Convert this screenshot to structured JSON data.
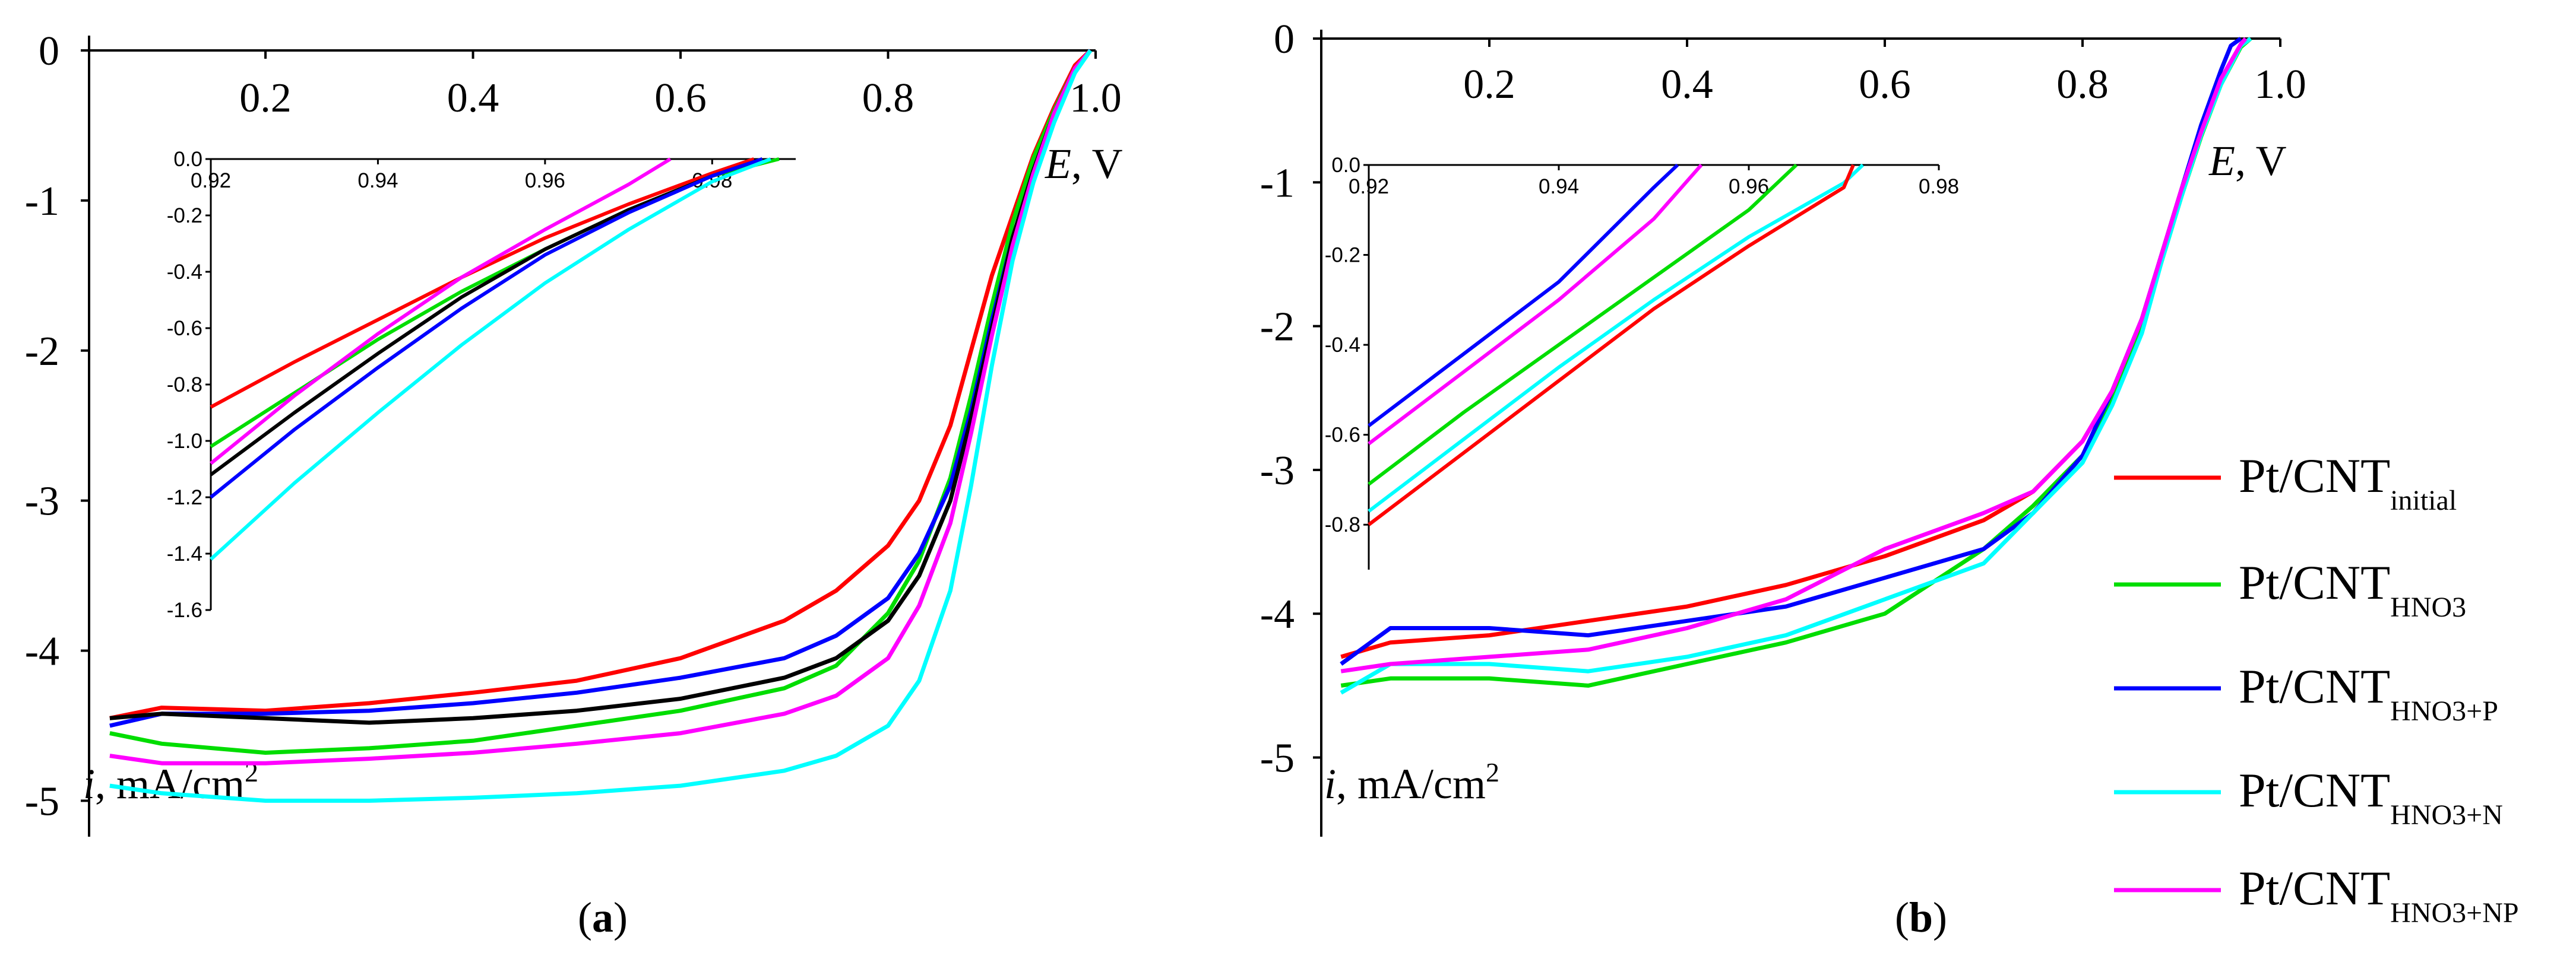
{
  "chart_data": [
    {
      "type": "line",
      "panel_label": "a",
      "xlabel_symbol": "E",
      "xlabel_unit": ", V",
      "ylabel_symbol": "i",
      "ylabel_unit": ", mA/cm",
      "ylabel_sup": "2",
      "xlim": [
        0.03,
        1.0
      ],
      "ylim": [
        -5.2,
        0
      ],
      "xticks": [
        0.2,
        0.4,
        0.6,
        0.8,
        1.0
      ],
      "xtick_labels": [
        "0.2",
        "0.4",
        "0.6",
        "0.8",
        "1.0"
      ],
      "yticks": [
        0,
        -1,
        -2,
        -3,
        -4,
        -5
      ],
      "ytick_labels": [
        "0",
        "-1",
        "-2",
        "-3",
        "-4",
        "-5"
      ],
      "series": [
        {
          "name": "red",
          "color": "#ff0000",
          "x": [
            0.05,
            0.1,
            0.2,
            0.3,
            0.4,
            0.5,
            0.6,
            0.7,
            0.75,
            0.8,
            0.83,
            0.86,
            0.88,
            0.9,
            0.92,
            0.94,
            0.96,
            0.98,
            0.995
          ],
          "y": [
            -4.45,
            -4.38,
            -4.4,
            -4.35,
            -4.28,
            -4.2,
            -4.05,
            -3.8,
            -3.6,
            -3.3,
            -3.0,
            -2.5,
            -2.0,
            -1.5,
            -1.1,
            -0.7,
            -0.38,
            -0.1,
            0
          ]
        },
        {
          "name": "green",
          "color": "#00dd00",
          "x": [
            0.05,
            0.1,
            0.2,
            0.3,
            0.4,
            0.5,
            0.6,
            0.7,
            0.75,
            0.8,
            0.83,
            0.86,
            0.88,
            0.9,
            0.92,
            0.94,
            0.96,
            0.98,
            0.995
          ],
          "y": [
            -4.55,
            -4.62,
            -4.68,
            -4.65,
            -4.6,
            -4.5,
            -4.4,
            -4.25,
            -4.1,
            -3.75,
            -3.4,
            -2.85,
            -2.3,
            -1.7,
            -1.15,
            -0.72,
            -0.4,
            -0.12,
            0
          ]
        },
        {
          "name": "blue",
          "color": "#0000ff",
          "x": [
            0.05,
            0.1,
            0.2,
            0.3,
            0.4,
            0.5,
            0.6,
            0.7,
            0.75,
            0.8,
            0.83,
            0.86,
            0.88,
            0.9,
            0.92,
            0.94,
            0.96,
            0.98,
            0.995
          ],
          "y": [
            -4.5,
            -4.42,
            -4.42,
            -4.4,
            -4.35,
            -4.28,
            -4.18,
            -4.05,
            -3.9,
            -3.65,
            -3.35,
            -2.9,
            -2.4,
            -1.8,
            -1.25,
            -0.8,
            -0.42,
            -0.12,
            0
          ]
        },
        {
          "name": "black",
          "color": "#000000",
          "x": [
            0.05,
            0.1,
            0.2,
            0.3,
            0.4,
            0.5,
            0.6,
            0.7,
            0.75,
            0.8,
            0.83,
            0.86,
            0.88,
            0.9,
            0.92,
            0.94,
            0.96,
            0.98,
            0.995
          ],
          "y": [
            -4.45,
            -4.42,
            -4.45,
            -4.48,
            -4.45,
            -4.4,
            -4.32,
            -4.18,
            -4.05,
            -3.8,
            -3.5,
            -3.0,
            -2.45,
            -1.85,
            -1.25,
            -0.8,
            -0.42,
            -0.12,
            0
          ]
        },
        {
          "name": "magenta",
          "color": "#ff00ff",
          "x": [
            0.05,
            0.1,
            0.2,
            0.3,
            0.4,
            0.5,
            0.6,
            0.7,
            0.75,
            0.8,
            0.83,
            0.86,
            0.88,
            0.9,
            0.92,
            0.94,
            0.96,
            0.98,
            0.995
          ],
          "y": [
            -4.7,
            -4.75,
            -4.75,
            -4.72,
            -4.68,
            -4.62,
            -4.55,
            -4.42,
            -4.3,
            -4.05,
            -3.7,
            -3.15,
            -2.55,
            -1.9,
            -1.3,
            -0.82,
            -0.42,
            -0.12,
            0
          ]
        },
        {
          "name": "cyan",
          "color": "#00ffff",
          "x": [
            0.05,
            0.1,
            0.2,
            0.3,
            0.4,
            0.5,
            0.6,
            0.7,
            0.75,
            0.8,
            0.83,
            0.86,
            0.88,
            0.9,
            0.92,
            0.94,
            0.96,
            0.98,
            0.995
          ],
          "y": [
            -4.9,
            -4.95,
            -5.0,
            -5.0,
            -4.98,
            -4.95,
            -4.9,
            -4.8,
            -4.7,
            -4.5,
            -4.2,
            -3.6,
            -2.9,
            -2.1,
            -1.4,
            -0.88,
            -0.48,
            -0.15,
            0
          ]
        }
      ],
      "inset": {
        "xlim": [
          0.92,
          0.99
        ],
        "ylim": [
          -1.6,
          0
        ],
        "xticks": [
          0.92,
          0.94,
          0.96,
          0.98
        ],
        "xtick_labels": [
          "0.92",
          "0.94",
          "0.96",
          "0.98"
        ],
        "yticks": [
          0,
          -0.2,
          -0.4,
          -0.6,
          -0.8,
          -1.0,
          -1.2,
          -1.4,
          -1.6
        ],
        "ytick_labels": [
          "0.0",
          "-0.2",
          "-0.4",
          "-0.6",
          "-0.8",
          "-1.0",
          "-1.2",
          "-1.4",
          "-1.6"
        ],
        "series": [
          {
            "name": "red",
            "color": "#ff0000",
            "x": [
              0.92,
              0.93,
              0.94,
              0.95,
              0.96,
              0.97,
              0.98,
              0.985
            ],
            "y": [
              -0.88,
              -0.72,
              -0.57,
              -0.42,
              -0.28,
              -0.16,
              -0.05,
              0
            ]
          },
          {
            "name": "green",
            "color": "#00dd00",
            "x": [
              0.92,
              0.93,
              0.94,
              0.95,
              0.96,
              0.97,
              0.98,
              0.988
            ],
            "y": [
              -1.02,
              -0.83,
              -0.64,
              -0.47,
              -0.32,
              -0.18,
              -0.06,
              0
            ]
          },
          {
            "name": "black",
            "color": "#000000",
            "x": [
              0.92,
              0.93,
              0.94,
              0.95,
              0.96,
              0.97,
              0.98,
              0.986
            ],
            "y": [
              -1.12,
              -0.9,
              -0.69,
              -0.49,
              -0.32,
              -0.18,
              -0.06,
              0
            ]
          },
          {
            "name": "blue",
            "color": "#0000ff",
            "x": [
              0.92,
              0.93,
              0.94,
              0.95,
              0.96,
              0.97,
              0.98,
              0.986
            ],
            "y": [
              -1.2,
              -0.96,
              -0.74,
              -0.53,
              -0.34,
              -0.19,
              -0.06,
              0
            ]
          },
          {
            "name": "magenta",
            "color": "#ff00ff",
            "x": [
              0.92,
              0.93,
              0.94,
              0.95,
              0.96,
              0.97,
              0.975
            ],
            "y": [
              -1.08,
              -0.84,
              -0.62,
              -0.42,
              -0.25,
              -0.09,
              0
            ]
          },
          {
            "name": "cyan",
            "color": "#00ffff",
            "x": [
              0.92,
              0.93,
              0.94,
              0.95,
              0.96,
              0.97,
              0.98,
              0.987
            ],
            "y": [
              -1.42,
              -1.15,
              -0.9,
              -0.66,
              -0.44,
              -0.25,
              -0.08,
              0
            ]
          }
        ]
      }
    },
    {
      "type": "line",
      "panel_label": "b",
      "xlabel_symbol": "E",
      "xlabel_unit": ", V",
      "ylabel_symbol": "i",
      "ylabel_unit": ", mA/cm",
      "ylabel_sup": "2",
      "xlim": [
        0.03,
        1.0
      ],
      "ylim": [
        -5.2,
        0
      ],
      "xticks": [
        0.2,
        0.4,
        0.6,
        0.8,
        1.0
      ],
      "xtick_labels": [
        "0.2",
        "0.4",
        "0.6",
        "0.8",
        "1.0"
      ],
      "yticks": [
        0,
        -1,
        -2,
        -3,
        -4,
        -5
      ],
      "ytick_labels": [
        "0",
        "-1",
        "-2",
        "-3",
        "-4",
        "-5"
      ],
      "series": [
        {
          "name": "Pt/CNT initial",
          "color": "#ff0000",
          "x": [
            0.05,
            0.1,
            0.2,
            0.3,
            0.4,
            0.5,
            0.6,
            0.7,
            0.75,
            0.8,
            0.83,
            0.86,
            0.88,
            0.9,
            0.92,
            0.94,
            0.96,
            0.97
          ],
          "y": [
            -4.3,
            -4.2,
            -4.15,
            -4.05,
            -3.95,
            -3.8,
            -3.6,
            -3.35,
            -3.15,
            -2.8,
            -2.45,
            -1.95,
            -1.5,
            -1.05,
            -0.65,
            -0.3,
            -0.05,
            0
          ]
        },
        {
          "name": "Pt/CNT HNO3",
          "color": "#00dd00",
          "x": [
            0.05,
            0.1,
            0.2,
            0.3,
            0.4,
            0.5,
            0.6,
            0.7,
            0.75,
            0.8,
            0.83,
            0.86,
            0.88,
            0.9,
            0.92,
            0.94,
            0.96,
            0.97
          ],
          "y": [
            -4.5,
            -4.45,
            -4.45,
            -4.5,
            -4.35,
            -4.2,
            -4.0,
            -3.55,
            -3.25,
            -2.9,
            -2.5,
            -2.0,
            -1.55,
            -1.1,
            -0.68,
            -0.32,
            -0.06,
            0
          ]
        },
        {
          "name": "Pt/CNT HNO3+P",
          "color": "#0000ff",
          "x": [
            0.05,
            0.1,
            0.2,
            0.3,
            0.4,
            0.5,
            0.6,
            0.7,
            0.75,
            0.8,
            0.83,
            0.86,
            0.88,
            0.9,
            0.92,
            0.94,
            0.95,
            0.96
          ],
          "y": [
            -4.35,
            -4.1,
            -4.1,
            -4.15,
            -4.05,
            -3.95,
            -3.75,
            -3.55,
            -3.3,
            -2.9,
            -2.45,
            -1.95,
            -1.5,
            -1.05,
            -0.6,
            -0.22,
            -0.05,
            0
          ]
        },
        {
          "name": "Pt/CNT HNO3+N",
          "color": "#00ffff",
          "x": [
            0.05,
            0.1,
            0.2,
            0.3,
            0.4,
            0.5,
            0.6,
            0.7,
            0.75,
            0.8,
            0.83,
            0.86,
            0.88,
            0.9,
            0.92,
            0.94,
            0.96,
            0.97
          ],
          "y": [
            -4.55,
            -4.35,
            -4.35,
            -4.4,
            -4.3,
            -4.15,
            -3.9,
            -3.65,
            -3.3,
            -2.95,
            -2.55,
            -2.05,
            -1.55,
            -1.1,
            -0.67,
            -0.32,
            -0.05,
            0
          ]
        },
        {
          "name": "Pt/CNT HNO3+NP",
          "color": "#ff00ff",
          "x": [
            0.05,
            0.1,
            0.2,
            0.3,
            0.4,
            0.5,
            0.6,
            0.7,
            0.75,
            0.8,
            0.83,
            0.86,
            0.88,
            0.9,
            0.92,
            0.94,
            0.96,
            0.965
          ],
          "y": [
            -4.4,
            -4.35,
            -4.3,
            -4.25,
            -4.1,
            -3.9,
            -3.55,
            -3.3,
            -3.15,
            -2.8,
            -2.45,
            -1.95,
            -1.5,
            -1.05,
            -0.65,
            -0.28,
            -0.04,
            0
          ]
        }
      ],
      "inset": {
        "xlim": [
          0.92,
          0.98
        ],
        "ylim": [
          -0.9,
          0
        ],
        "xticks": [
          0.92,
          0.94,
          0.96,
          0.98
        ],
        "xtick_labels": [
          "0.92",
          "0.94",
          "0.96",
          "0.98"
        ],
        "yticks": [
          0,
          -0.2,
          -0.4,
          -0.6,
          -0.8
        ],
        "ytick_labels": [
          "0.0",
          "-0.2",
          "-0.4",
          "-0.6",
          "-0.8"
        ],
        "series": [
          {
            "name": "blue",
            "color": "#0000ff",
            "x": [
              0.92,
              0.93,
              0.94,
              0.95,
              0.9525
            ],
            "y": [
              -0.58,
              -0.42,
              -0.26,
              -0.05,
              0
            ]
          },
          {
            "name": "magenta",
            "color": "#ff00ff",
            "x": [
              0.92,
              0.93,
              0.94,
              0.95,
              0.955
            ],
            "y": [
              -0.62,
              -0.46,
              -0.3,
              -0.12,
              0
            ]
          },
          {
            "name": "green",
            "color": "#00dd00",
            "x": [
              0.92,
              0.93,
              0.94,
              0.95,
              0.96,
              0.965
            ],
            "y": [
              -0.71,
              -0.55,
              -0.4,
              -0.25,
              -0.1,
              0
            ]
          },
          {
            "name": "cyan",
            "color": "#00ffff",
            "x": [
              0.92,
              0.93,
              0.94,
              0.95,
              0.96,
              0.97,
              0.972
            ],
            "y": [
              -0.77,
              -0.61,
              -0.45,
              -0.3,
              -0.16,
              -0.04,
              0
            ]
          },
          {
            "name": "red",
            "color": "#ff0000",
            "x": [
              0.92,
              0.93,
              0.94,
              0.95,
              0.96,
              0.97,
              0.971
            ],
            "y": [
              -0.8,
              -0.64,
              -0.48,
              -0.32,
              -0.18,
              -0.05,
              0
            ]
          }
        ]
      },
      "legend": {
        "position": "right",
        "items": [
          {
            "base": "Pt/CNT",
            "sub": "initial",
            "color": "#ff0000"
          },
          {
            "base": "Pt/CNT",
            "sub": "HNO3",
            "color": "#00dd00"
          },
          {
            "base": "Pt/CNT",
            "sub": "HNO3+P",
            "color": "#0000ff"
          },
          {
            "base": "Pt/CNT",
            "sub": "HNO3+N",
            "color": "#00ffff"
          },
          {
            "base": "Pt/CNT",
            "sub": "HNO3+NP",
            "color": "#ff00ff"
          }
        ]
      }
    }
  ]
}
